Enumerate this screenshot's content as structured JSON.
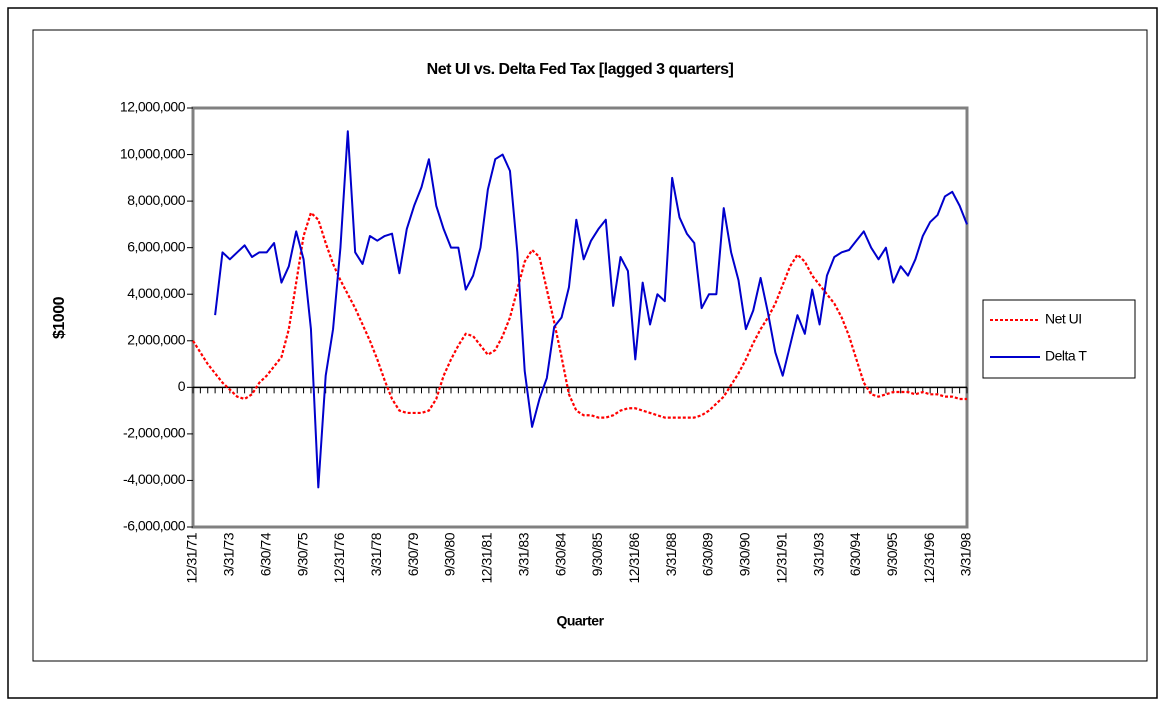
{
  "chart_data": {
    "type": "line",
    "title": "Net UI vs. Delta Fed Tax [lagged 3 quarters]",
    "x_label": "Quarter",
    "y_label": "$1000",
    "categories": [
      "12/31/71",
      null,
      null,
      null,
      null,
      "3/31/73",
      null,
      null,
      null,
      null,
      "6/30/74",
      null,
      null,
      null,
      null,
      "9/30/75",
      null,
      null,
      null,
      null,
      "12/31/76",
      null,
      null,
      null,
      null,
      "3/31/78",
      null,
      null,
      null,
      null,
      "6/30/79",
      null,
      null,
      null,
      null,
      "9/30/80",
      null,
      null,
      null,
      null,
      "12/31/81",
      null,
      null,
      null,
      null,
      "3/31/83",
      null,
      null,
      null,
      null,
      "6/30/84",
      null,
      null,
      null,
      null,
      "9/30/85",
      null,
      null,
      null,
      null,
      "12/31/86",
      null,
      null,
      null,
      null,
      "3/31/88",
      null,
      null,
      null,
      null,
      "6/30/89",
      null,
      null,
      null,
      null,
      "9/30/90",
      null,
      null,
      null,
      null,
      "12/31/91",
      null,
      null,
      null,
      null,
      "3/31/93",
      null,
      null,
      null,
      null,
      "6/30/94",
      null,
      null,
      null,
      null,
      "9/30/95",
      null,
      null,
      null,
      null,
      "12/31/96",
      null,
      null,
      null,
      null,
      "3/31/98"
    ],
    "series": [
      {
        "name": "Net UI",
        "color": "#ff0000",
        "line_style": "dotted",
        "values": [
          2000000,
          1500000,
          1000000,
          600000,
          200000,
          -100000,
          -400000,
          -500000,
          -300000,
          200000,
          500000,
          900000,
          1300000,
          2500000,
          4500000,
          6500000,
          7500000,
          7200000,
          6200000,
          5300000,
          4600000,
          4000000,
          3400000,
          2700000,
          2000000,
          1200000,
          300000,
          -500000,
          -1000000,
          -1100000,
          -1100000,
          -1100000,
          -1000000,
          -500000,
          500000,
          1200000,
          1800000,
          2300000,
          2200000,
          1800000,
          1400000,
          1600000,
          2200000,
          3000000,
          4200000,
          5400000,
          5900000,
          5600000,
          4200000,
          2800000,
          1300000,
          -300000,
          -1000000,
          -1200000,
          -1200000,
          -1300000,
          -1300000,
          -1200000,
          -1000000,
          -900000,
          -900000,
          -1000000,
          -1100000,
          -1200000,
          -1300000,
          -1300000,
          -1300000,
          -1300000,
          -1300000,
          -1200000,
          -1000000,
          -700000,
          -400000,
          100000,
          600000,
          1200000,
          1900000,
          2500000,
          3000000,
          3600000,
          4400000,
          5200000,
          5700000,
          5400000,
          4800000,
          4400000,
          4000000,
          3600000,
          3000000,
          2200000,
          1200000,
          200000,
          -300000,
          -400000,
          -300000,
          -200000,
          -200000,
          -200000,
          -300000,
          -200000,
          -300000,
          -300000,
          -400000,
          -400000,
          -500000,
          -500000
        ]
      },
      {
        "name": "Delta T",
        "color": "#0000cc",
        "line_style": "solid",
        "values": [
          null,
          null,
          null,
          3100000,
          5800000,
          5500000,
          5800000,
          6100000,
          5600000,
          5800000,
          5800000,
          6200000,
          4500000,
          5200000,
          6700000,
          5500000,
          2500000,
          -4300000,
          500000,
          2500000,
          6000000,
          11000000,
          5800000,
          5300000,
          6500000,
          6300000,
          6500000,
          6600000,
          4900000,
          6800000,
          7800000,
          8600000,
          9800000,
          7800000,
          6800000,
          6000000,
          6000000,
          4200000,
          4800000,
          6000000,
          8500000,
          9800000,
          10000000,
          9300000,
          5800000,
          700000,
          -1700000,
          -500000,
          400000,
          2600000,
          3000000,
          4300000,
          7200000,
          5500000,
          6300000,
          6800000,
          7200000,
          3500000,
          5600000,
          5000000,
          1200000,
          4500000,
          2700000,
          4000000,
          3700000,
          9000000,
          7300000,
          6600000,
          6200000,
          3400000,
          4000000,
          4000000,
          7700000,
          5800000,
          4600000,
          2500000,
          3300000,
          4700000,
          3200000,
          1500000,
          500000,
          1800000,
          3100000,
          2300000,
          4200000,
          2700000,
          4800000,
          5600000,
          5800000,
          5900000,
          6300000,
          6700000,
          6000000,
          5500000,
          6000000,
          4500000,
          5200000,
          4800000,
          5500000,
          6500000,
          7100000,
          7400000,
          8200000,
          8400000,
          7800000,
          7000000
        ]
      }
    ],
    "ylim": [
      -6000000,
      12000000
    ],
    "yticks": [
      {
        "value": -6000000,
        "label": "-6,000,000"
      },
      {
        "value": -4000000,
        "label": "-4,000,000"
      },
      {
        "value": -2000000,
        "label": "-2,000,000"
      },
      0,
      {
        "value": 2000000,
        "label": "2,000,000"
      },
      {
        "value": 4000000,
        "label": "4,000,000"
      },
      {
        "value": 6000000,
        "label": "6,000,000"
      },
      {
        "value": 8000000,
        "label": "8,000,000"
      },
      {
        "value": 10000000,
        "label": "10,000,000"
      },
      {
        "value": 12000000,
        "label": "12,000,000"
      }
    ],
    "legend": "right"
  }
}
